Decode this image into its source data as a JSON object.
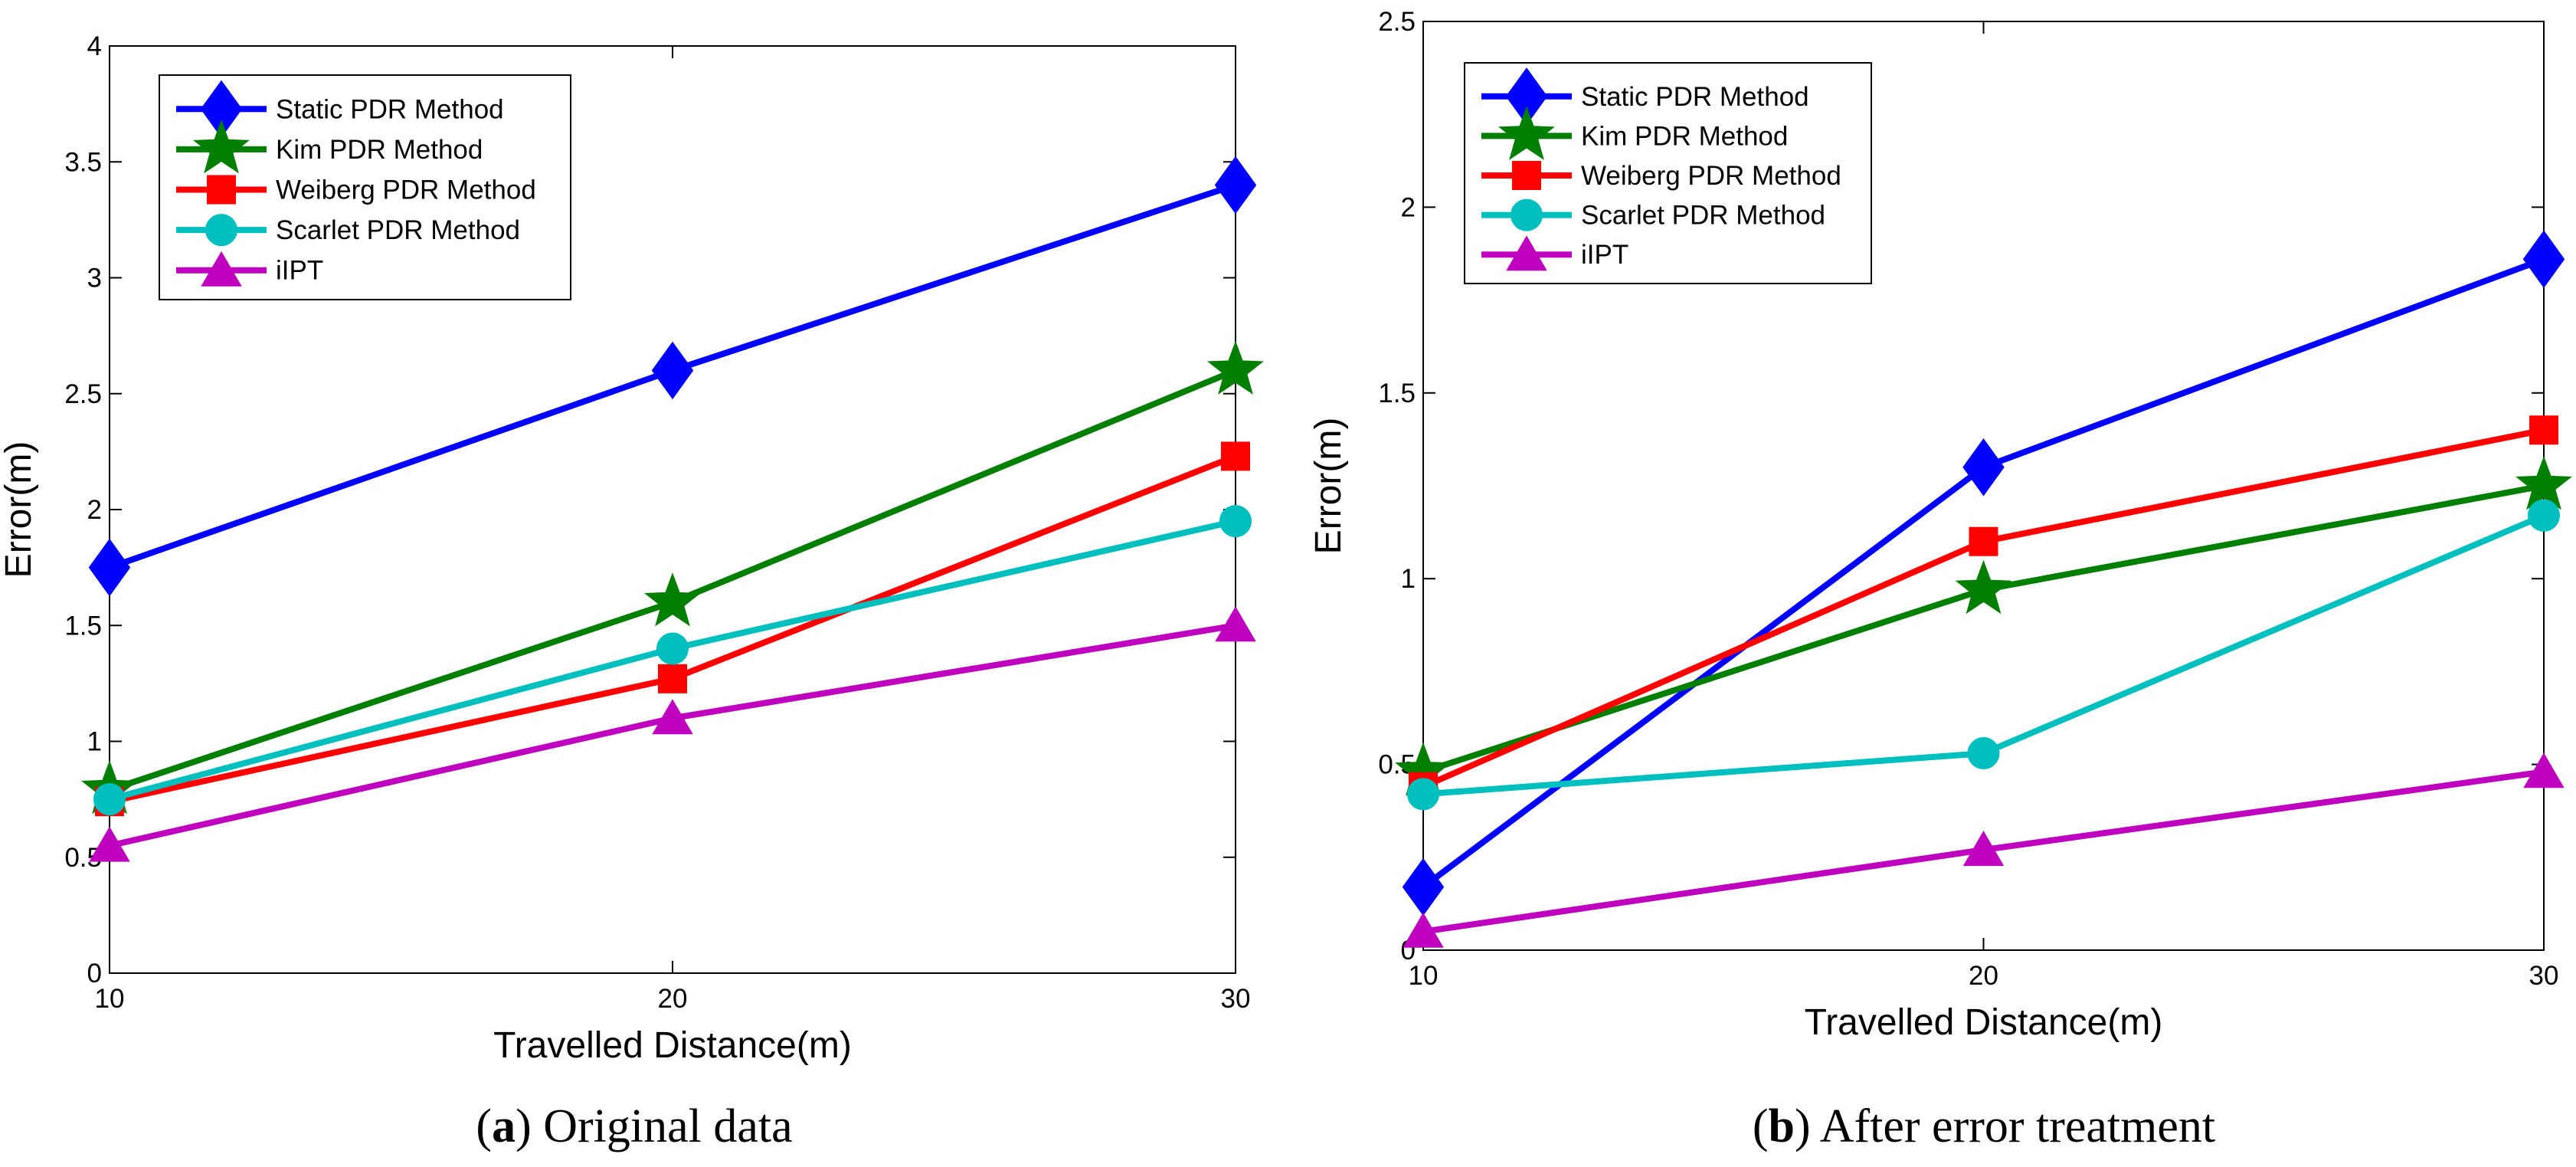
{
  "chart_data": [
    {
      "type": "line",
      "caption_letter": "a",
      "caption_text": "Original data",
      "xlabel": "Travelled Distance(m)",
      "ylabel": "Error(m)",
      "x": [
        10,
        20,
        30
      ],
      "xlim": [
        10,
        30
      ],
      "ylim": [
        0,
        4
      ],
      "xticks": [
        "10",
        "20",
        "30"
      ],
      "yticks": [
        "0",
        "0.5",
        "1",
        "1.5",
        "2",
        "2.5",
        "3",
        "3.5",
        "4"
      ],
      "legend_position": "top-left",
      "series": [
        {
          "name": "Static PDR Method",
          "color": "#0000ff",
          "marker": "diamond",
          "values": [
            1.75,
            2.6,
            3.4
          ]
        },
        {
          "name": "Kim PDR Method",
          "color": "#007f00",
          "marker": "star",
          "values": [
            0.79,
            1.6,
            2.6
          ]
        },
        {
          "name": "Weiberg PDR Method",
          "color": "#ff0000",
          "marker": "square",
          "values": [
            0.74,
            1.27,
            2.23
          ]
        },
        {
          "name": "Scarlet PDR Method",
          "color": "#00bfbf",
          "marker": "circle",
          "values": [
            0.75,
            1.4,
            1.95
          ]
        },
        {
          "name": "iIPT",
          "color": "#bf00bf",
          "marker": "triangle",
          "values": [
            0.55,
            1.1,
            1.5
          ]
        }
      ]
    },
    {
      "type": "line",
      "caption_letter": "b",
      "caption_text": "After error treatment",
      "xlabel": "Travelled Distance(m)",
      "ylabel": "Error(m)",
      "x": [
        10,
        20,
        30
      ],
      "xlim": [
        10,
        30
      ],
      "ylim": [
        0,
        2.5
      ],
      "xticks": [
        "10",
        "20",
        "30"
      ],
      "yticks": [
        "0",
        "0.5",
        "1",
        "1.5",
        "2",
        "2.5"
      ],
      "legend_position": "top-left",
      "series": [
        {
          "name": "Static PDR Method",
          "color": "#0000ff",
          "marker": "diamond",
          "values": [
            0.17,
            1.3,
            1.86
          ]
        },
        {
          "name": "Kim PDR Method",
          "color": "#007f00",
          "marker": "star",
          "values": [
            0.48,
            0.97,
            1.25
          ]
        },
        {
          "name": "Weiberg PDR Method",
          "color": "#ff0000",
          "marker": "square",
          "values": [
            0.44,
            1.1,
            1.4
          ]
        },
        {
          "name": "Scarlet PDR Method",
          "color": "#00bfbf",
          "marker": "circle",
          "values": [
            0.42,
            0.53,
            1.17
          ]
        },
        {
          "name": "iIPT",
          "color": "#bf00bf",
          "marker": "triangle",
          "values": [
            0.05,
            0.27,
            0.48
          ]
        }
      ]
    }
  ]
}
